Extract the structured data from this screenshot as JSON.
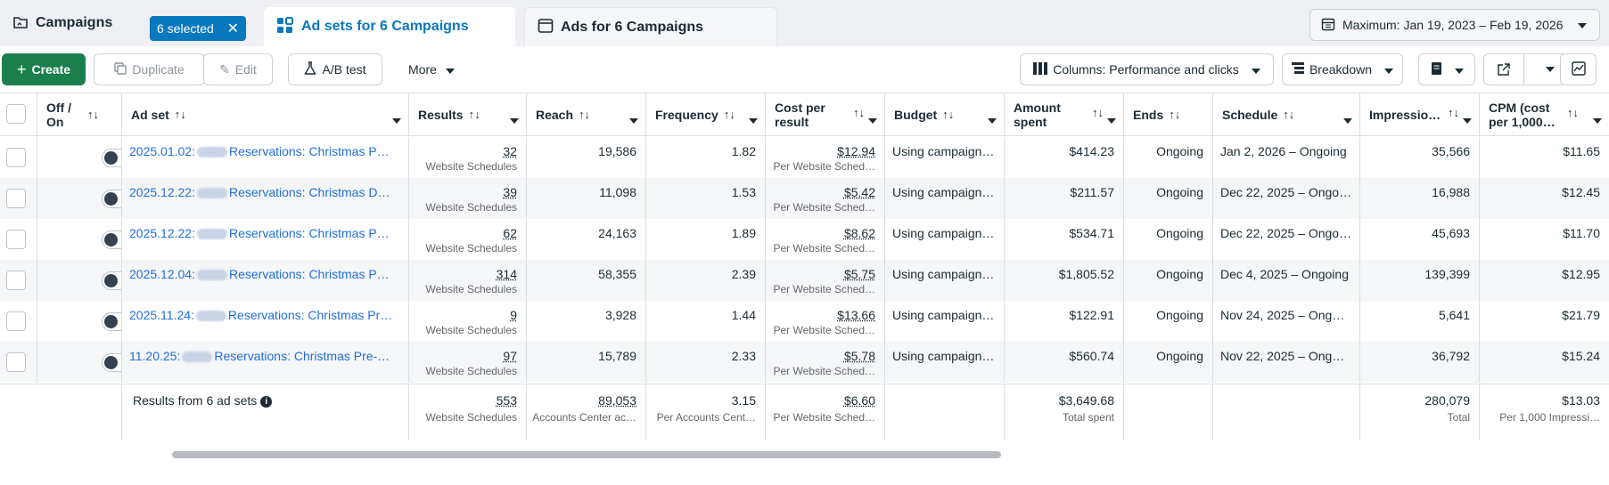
{
  "tabs": {
    "campaigns": "Campaigns",
    "selected_pill": "6 selected",
    "adsets": "Ad sets for 6 Campaigns",
    "ads": "Ads for 6 Campaigns"
  },
  "date_range": "Maximum: Jan 19, 2023 – Feb 19, 2026",
  "toolbar": {
    "create": "Create",
    "duplicate": "Duplicate",
    "edit": "Edit",
    "ab_test": "A/B test",
    "more": "More",
    "columns": "Columns: Performance and clicks",
    "breakdown": "Breakdown"
  },
  "columns": {
    "off_on": "Off / On",
    "ad_set": "Ad set",
    "results": "Results",
    "reach": "Reach",
    "frequency": "Frequency",
    "cost_per_result_1": "Cost per",
    "cost_per_result_2": "result",
    "budget": "Budget",
    "amount_spent_1": "Amount",
    "amount_spent_2": "spent",
    "ends": "Ends",
    "schedule": "Schedule",
    "impressions": "Impressio…",
    "cpm_1": "CPM (cost",
    "cpm_2": "per 1,000…"
  },
  "rows": [
    {
      "date": "2025.01.02:",
      "name": "Reservations: Christmas P…",
      "results": "32",
      "results_sub": "Website Schedules",
      "reach": "19,586",
      "frequency": "1.82",
      "cpr": "$12.94",
      "cpr_sub": "Per Website Sched…",
      "budget": "Using campaign…",
      "spent": "$414.23",
      "ends": "Ongoing",
      "schedule": "Jan 2, 2026 – Ongoing",
      "impressions": "35,566",
      "cpm": "$11.65"
    },
    {
      "date": "2025.12.22:",
      "name": "Reservations: Christmas D…",
      "results": "39",
      "results_sub": "Website Schedules",
      "reach": "11,098",
      "frequency": "1.53",
      "cpr": "$5.42",
      "cpr_sub": "Per Website Sched…",
      "budget": "Using campaign…",
      "spent": "$211.57",
      "ends": "Ongoing",
      "schedule": "Dec 22, 2025 – Ongo…",
      "impressions": "16,988",
      "cpm": "$12.45"
    },
    {
      "date": "2025.12.22:",
      "name": "Reservations: Christmas P…",
      "results": "62",
      "results_sub": "Website Schedules",
      "reach": "24,163",
      "frequency": "1.89",
      "cpr": "$8.62",
      "cpr_sub": "Per Website Sched…",
      "budget": "Using campaign…",
      "spent": "$534.71",
      "ends": "Ongoing",
      "schedule": "Dec 22, 2025 – Ongo…",
      "impressions": "45,693",
      "cpm": "$11.70"
    },
    {
      "date": "2025.12.04:",
      "name": "Reservations: Christmas P…",
      "results": "314",
      "results_sub": "Website Schedules",
      "reach": "58,355",
      "frequency": "2.39",
      "cpr": "$5.75",
      "cpr_sub": "Per Website Sched…",
      "budget": "Using campaign…",
      "spent": "$1,805.52",
      "ends": "Ongoing",
      "schedule": "Dec 4, 2025 – Ongoing",
      "impressions": "139,399",
      "cpm": "$12.95"
    },
    {
      "date": "2025.11.24:",
      "name": "Reservations: Christmas Pr…",
      "results": "9",
      "results_sub": "Website Schedules",
      "reach": "3,928",
      "frequency": "1.44",
      "cpr": "$13.66",
      "cpr_sub": "Per Website Sched…",
      "budget": "Using campaign…",
      "spent": "$122.91",
      "ends": "Ongoing",
      "schedule": "Nov 24, 2025 – Ong…",
      "impressions": "5,641",
      "cpm": "$21.79"
    },
    {
      "date": "11.20.25:",
      "name": "Reservations: Christmas Pre-…",
      "results": "97",
      "results_sub": "Website Schedules",
      "reach": "15,789",
      "frequency": "2.33",
      "cpr": "$5.78",
      "cpr_sub": "Per Website Sched…",
      "budget": "Using campaign…",
      "spent": "$560.74",
      "ends": "Ongoing",
      "schedule": "Nov 22, 2025 – Ong…",
      "impressions": "36,792",
      "cpm": "$15.24"
    }
  ],
  "totals": {
    "label": "Results from 6 ad sets",
    "results": "553",
    "results_sub": "Website Schedules",
    "reach": "89,053",
    "reach_sub": "Accounts Center ac…",
    "frequency": "3.15",
    "frequency_sub": "Per Accounts Cent…",
    "cpr": "$6.60",
    "cpr_sub": "Per Website Sched…",
    "spent": "$3,649.68",
    "spent_sub": "Total spent",
    "impressions": "280,079",
    "impressions_sub": "Total",
    "cpm": "$13.03",
    "cpm_sub": "Per 1,000 Impressi…"
  }
}
